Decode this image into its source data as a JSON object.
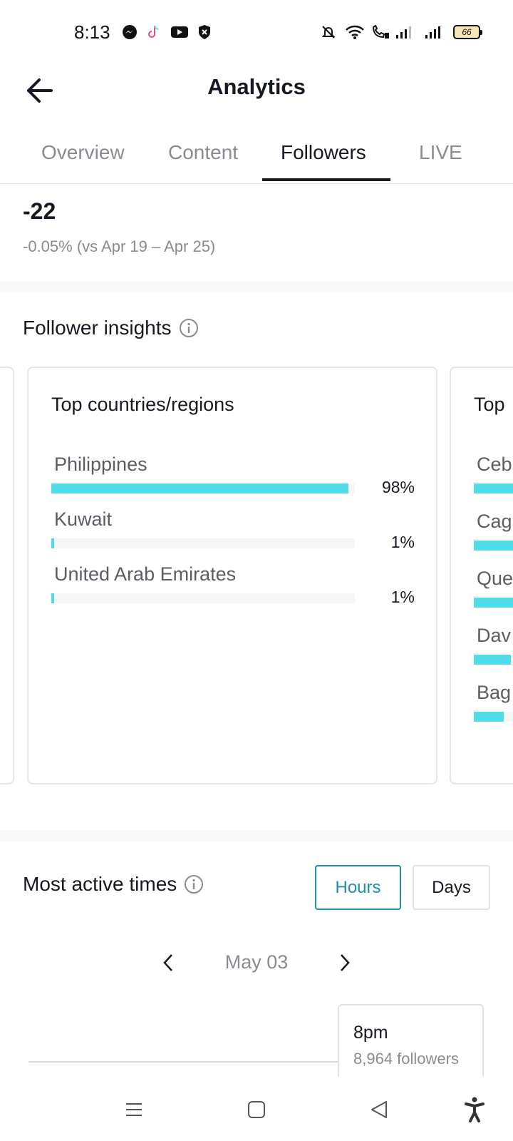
{
  "status_bar": {
    "time": "8:13",
    "battery": "66",
    "left_icons": [
      "messenger-icon",
      "tiktok-icon",
      "youtube-icon",
      "shield-icon"
    ],
    "right_icons": [
      "mute-notifications-icon",
      "wifi-icon",
      "wifi-calling-icon",
      "signal-icon",
      "signal-icon",
      "battery-icon"
    ]
  },
  "header": {
    "title": "Analytics"
  },
  "tabs": [
    {
      "label": "Overview"
    },
    {
      "label": "Content"
    },
    {
      "label": "Followers"
    },
    {
      "label": "LIVE"
    }
  ],
  "net_change": {
    "value": "-22",
    "comparison": "-0.05% (vs Apr 19 – Apr 25)"
  },
  "follower_insights": {
    "title": "Follower insights",
    "countries_card": {
      "title": "Top countries/regions",
      "rows": [
        {
          "name": "Philippines",
          "percent_label": "98%",
          "fill": 0.98
        },
        {
          "name": "Kuwait",
          "percent_label": "1%",
          "fill": 0.01
        },
        {
          "name": "United Arab Emirates",
          "percent_label": "1%",
          "fill": 0.01
        }
      ]
    },
    "cities_card_partial": {
      "title": "Top",
      "rows": [
        {
          "name": "Ceb"
        },
        {
          "name": "Cag"
        },
        {
          "name": "Que"
        },
        {
          "name": "Dav"
        },
        {
          "name": "Bag"
        }
      ]
    }
  },
  "most_active": {
    "title": "Most active times",
    "toggle": {
      "hours": "Hours",
      "days": "Days",
      "selected": "Hours"
    },
    "date": "May 03",
    "tooltip": {
      "time": "8pm",
      "count": "8,964 followers"
    }
  },
  "colors": {
    "accent": "#4fdbea",
    "selected_toggle": "#1d8fa8",
    "text_primary": "#161823",
    "text_secondary": "#8a8b91"
  }
}
